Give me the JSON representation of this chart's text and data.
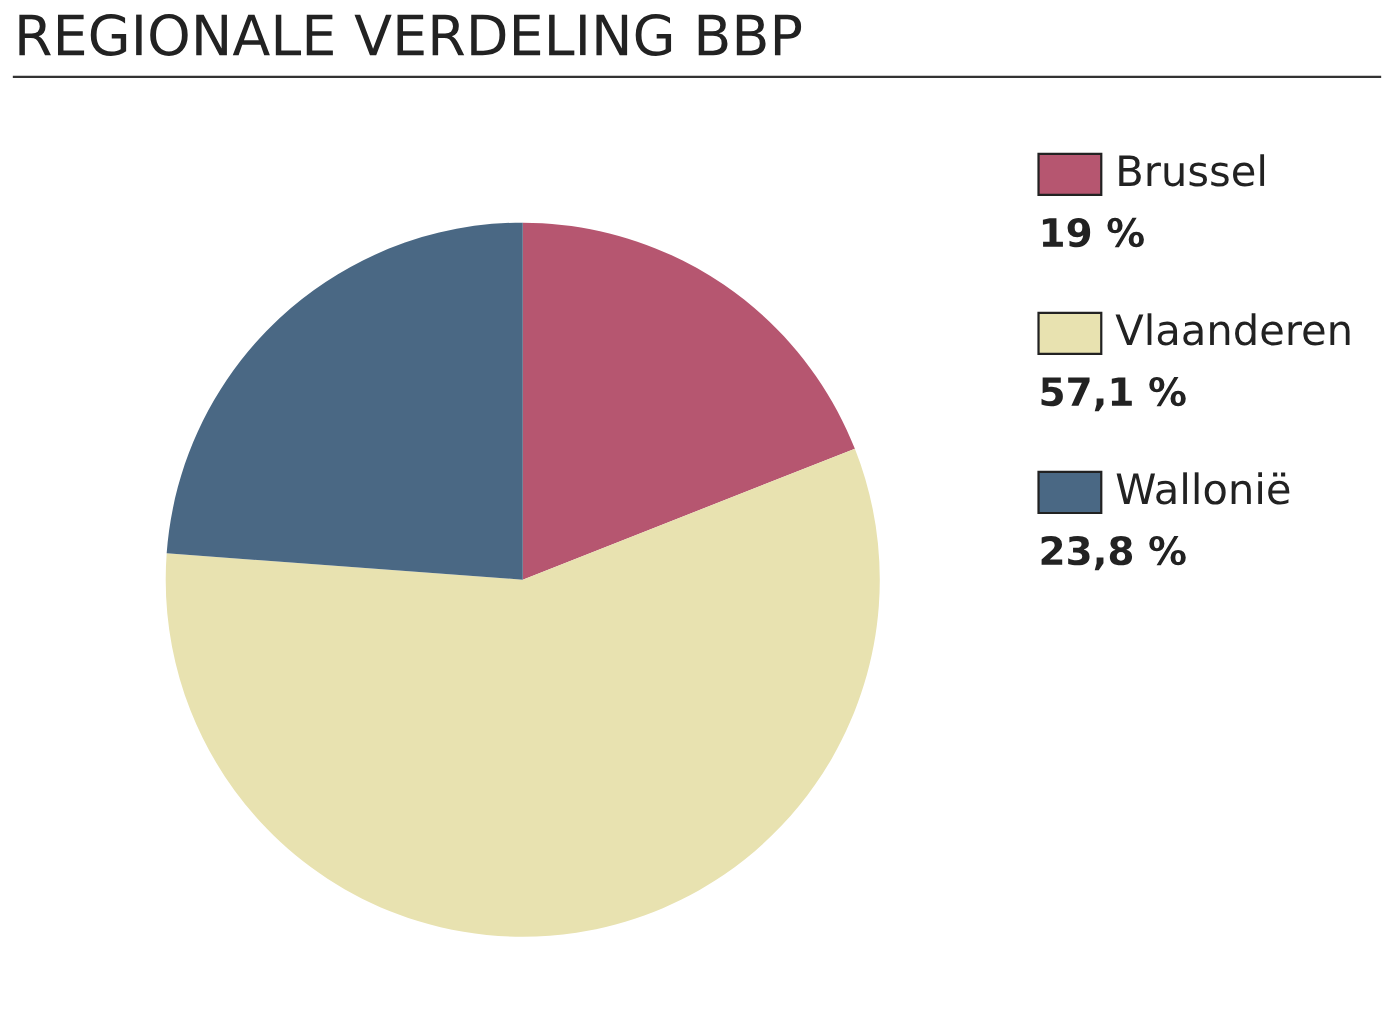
{
  "chart_data": {
    "type": "pie",
    "title": "REGIONALE VERDELING BBP",
    "categories": [
      "Brussel",
      "Vlaanderen",
      "Wallonië"
    ],
    "values": [
      19,
      57.1,
      23.8
    ],
    "value_labels": [
      "19 %",
      "57,1 %",
      "23,8 %"
    ],
    "colors": [
      "#b65670",
      "#e8e2b0",
      "#4a6884"
    ],
    "legend": "right"
  }
}
